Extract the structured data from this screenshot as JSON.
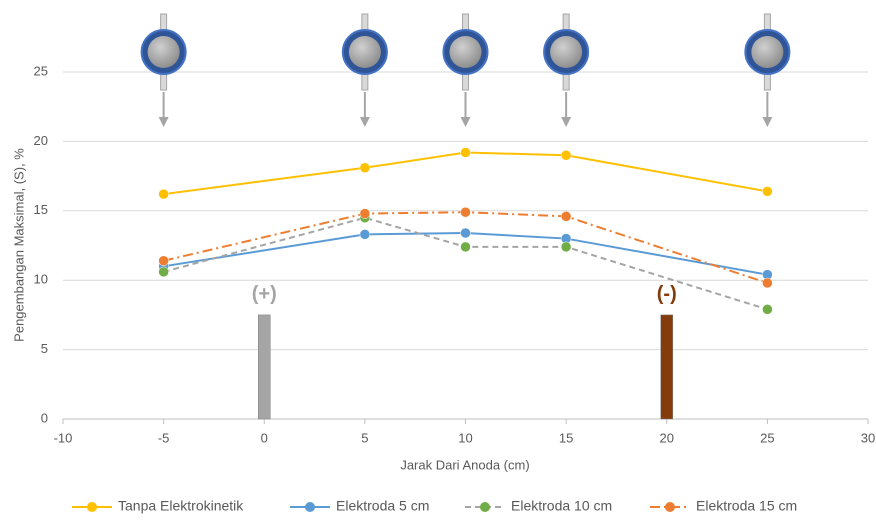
{
  "chart_data": {
    "type": "line",
    "x_label": "Jarak Dari Anoda (cm)",
    "y_label": "Pengembangan Maksimal, (S), %",
    "x": [
      -5,
      5,
      10,
      15,
      25
    ],
    "series": [
      {
        "name": "Tanpa Elektrokinetik",
        "color": "#FFC000",
        "values": [
          16.2,
          18.1,
          19.2,
          19.0,
          16.4
        ],
        "dash": "solid"
      },
      {
        "name": "Elektroda 5 cm",
        "color": "#5B9BD5",
        "values": [
          11.0,
          13.3,
          13.4,
          13.0,
          10.4
        ],
        "dash": "solid"
      },
      {
        "name": "Elektroda 10 cm",
        "color": "#A5A5A5",
        "marker_color": "#70AD47",
        "values": [
          10.6,
          14.5,
          12.4,
          12.4,
          7.9
        ],
        "dash": "dash"
      },
      {
        "name": "Elektroda 15 cm",
        "color": "#ED7D31",
        "values": [
          11.4,
          14.8,
          14.9,
          14.6,
          9.8
        ],
        "dash": "dashdot"
      }
    ],
    "xlim": [
      -10,
      30
    ],
    "xticks": [
      -10,
      -5,
      0,
      5,
      10,
      15,
      20,
      25,
      30
    ],
    "ylim": [
      0,
      25
    ],
    "yticks": [
      0,
      5,
      10,
      15,
      20,
      25
    ],
    "grid": true,
    "legend": "bottom",
    "annotations": [
      {
        "text": "(+)",
        "x": 0,
        "value": 7.5,
        "color": "#A5A5A5"
      },
      {
        "text": "(-)",
        "x": 20,
        "value": 7.5,
        "color": "#843C0C"
      }
    ]
  }
}
